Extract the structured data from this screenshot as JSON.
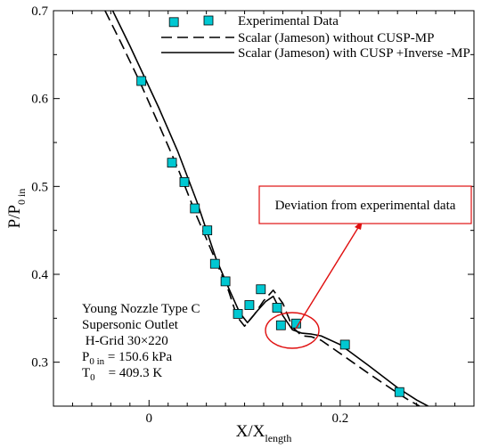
{
  "chart_data": {
    "type": "line",
    "xlabel": "X/X",
    "xlabel_sub": "length",
    "ylabel": "P/P",
    "ylabel_sub": "0 in",
    "xlim": [
      -0.1,
      0.34
    ],
    "ylim": [
      0.25,
      0.7
    ],
    "x_ticks": [
      0.0,
      0.2
    ],
    "x_tick_labels": [
      "0",
      "0.2"
    ],
    "y_ticks": [
      0.3,
      0.4,
      0.5,
      0.6,
      0.7
    ],
    "y_tick_labels": [
      "0.3",
      "0.4",
      "0.5",
      "0.6",
      "0.7"
    ],
    "grid": false,
    "legend_position": "top-right",
    "series": [
      {
        "name": "Experimental Data",
        "style": "markers",
        "color": "#00c8d2",
        "points": [
          [
            -0.008,
            0.62
          ],
          [
            0.024,
            0.527
          ],
          [
            0.037,
            0.505
          ],
          [
            0.048,
            0.475
          ],
          [
            0.061,
            0.45
          ],
          [
            0.069,
            0.412
          ],
          [
            0.08,
            0.392
          ],
          [
            0.093,
            0.355
          ],
          [
            0.105,
            0.365
          ],
          [
            0.117,
            0.383
          ],
          [
            0.134,
            0.362
          ],
          [
            0.138,
            0.342
          ],
          [
            0.154,
            0.344
          ],
          [
            0.205,
            0.32
          ],
          [
            0.262,
            0.266
          ],
          [
            0.026,
            0.687
          ]
        ]
      },
      {
        "name": "Scalar (Jameson) without CUSP-MP",
        "style": "dashed",
        "color": "#000000",
        "points": [
          [
            -0.046,
            0.7
          ],
          [
            -0.03,
            0.665
          ],
          [
            -0.01,
            0.62
          ],
          [
            0.01,
            0.571
          ],
          [
            0.03,
            0.521
          ],
          [
            0.05,
            0.466
          ],
          [
            0.07,
            0.415
          ],
          [
            0.083,
            0.382
          ],
          [
            0.092,
            0.352
          ],
          [
            0.1,
            0.341
          ],
          [
            0.11,
            0.354
          ],
          [
            0.12,
            0.37
          ],
          [
            0.13,
            0.382
          ],
          [
            0.14,
            0.367
          ],
          [
            0.15,
            0.34
          ],
          [
            0.16,
            0.33
          ],
          [
            0.17,
            0.329
          ],
          [
            0.18,
            0.325
          ],
          [
            0.2,
            0.31
          ],
          [
            0.23,
            0.287
          ],
          [
            0.26,
            0.265
          ],
          [
            0.27,
            0.258
          ],
          [
            0.283,
            0.25
          ]
        ]
      },
      {
        "name": "Scalar (Jameson) with CUSP +Inverse -MP",
        "style": "solid",
        "color": "#000000",
        "points": [
          [
            -0.038,
            0.7
          ],
          [
            -0.02,
            0.66
          ],
          [
            -0.005,
            0.625
          ],
          [
            0.01,
            0.59
          ],
          [
            0.03,
            0.54
          ],
          [
            0.05,
            0.483
          ],
          [
            0.07,
            0.418
          ],
          [
            0.085,
            0.38
          ],
          [
            0.095,
            0.356
          ],
          [
            0.103,
            0.345
          ],
          [
            0.113,
            0.358
          ],
          [
            0.122,
            0.369
          ],
          [
            0.13,
            0.375
          ],
          [
            0.14,
            0.353
          ],
          [
            0.15,
            0.337
          ],
          [
            0.16,
            0.333
          ],
          [
            0.17,
            0.332
          ],
          [
            0.18,
            0.33
          ],
          [
            0.2,
            0.32
          ],
          [
            0.23,
            0.296
          ],
          [
            0.26,
            0.271
          ],
          [
            0.28,
            0.257
          ],
          [
            0.292,
            0.25
          ]
        ]
      }
    ],
    "annotations": {
      "info_lines": [
        {
          "text": "Young Nozzle Type C"
        },
        {
          "text": "Supersonic Outlet"
        },
        {
          "text": " H-Grid 30×220"
        },
        {
          "main": "P",
          "sub": "0 in",
          "rest": " = 150.6 kPa"
        },
        {
          "main": "T",
          "sub": "0",
          "rest": "    = 409.3 K"
        }
      ],
      "callout_text": "Deviation from experimental data",
      "highlight_center": [
        0.16,
        0.337
      ],
      "highlight_color": "#e01010"
    }
  }
}
